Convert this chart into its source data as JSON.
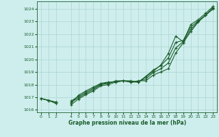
{
  "background_color": "#ceeeed",
  "plot_bg_color": "#ceeeed",
  "grid_color": "#afd8d5",
  "line_color": "#1a5c2a",
  "xlabel": "Graphe pression niveau de la mer (hPa)",
  "xlim": [
    -0.5,
    23.5
  ],
  "ylim": [
    1015.8,
    1024.6
  ],
  "yticks": [
    1016,
    1017,
    1018,
    1019,
    1020,
    1021,
    1022,
    1023,
    1024
  ],
  "xticks": [
    0,
    1,
    2,
    4,
    5,
    6,
    7,
    8,
    9,
    10,
    11,
    12,
    13,
    14,
    15,
    16,
    17,
    18,
    19,
    20,
    21,
    22,
    23
  ],
  "series": [
    [
      1016.9,
      1016.75,
      1016.6,
      null,
      1016.5,
      1017.15,
      1017.5,
      1017.8,
      1018.1,
      1018.2,
      1018.2,
      1018.3,
      1018.2,
      1018.3,
      1018.3,
      1018.75,
      1019.0,
      1019.25,
      1020.5,
      1021.3,
      1022.2,
      1022.95,
      1023.5,
      1024.0
    ],
    [
      1016.9,
      1016.75,
      1016.6,
      null,
      1016.6,
      1016.95,
      1017.3,
      1017.6,
      1018.0,
      1018.1,
      1018.3,
      1018.3,
      1018.3,
      1018.2,
      1018.65,
      1019.15,
      1019.5,
      1020.1,
      1021.35,
      1021.5,
      1022.55,
      1023.05,
      1023.5,
      1024.1
    ],
    [
      1016.9,
      1016.75,
      1016.6,
      null,
      1016.7,
      1017.05,
      1017.4,
      1017.7,
      1018.05,
      1018.15,
      1018.25,
      1018.3,
      1018.25,
      1018.25,
      1018.45,
      1018.95,
      1019.25,
      1019.7,
      1020.9,
      1021.4,
      1022.35,
      1023.0,
      1023.5,
      1024.05
    ],
    [
      1016.9,
      1016.75,
      1016.5,
      null,
      1016.4,
      1016.85,
      1017.2,
      1017.5,
      1017.9,
      1018.0,
      1018.2,
      1018.3,
      1018.2,
      1018.2,
      1018.6,
      1019.05,
      1019.55,
      1020.45,
      1021.85,
      1021.4,
      1022.75,
      1023.15,
      1023.65,
      1024.2
    ]
  ]
}
